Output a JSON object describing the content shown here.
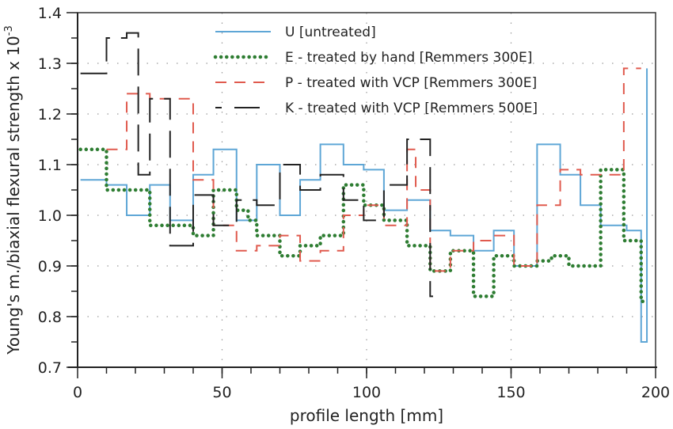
{
  "chart_data": {
    "type": "line",
    "step": true,
    "title": "",
    "xlabel": "profile length [mm]",
    "ylabel": "Young's m./biaxial flexural strength x 10",
    "ylabel_superscript": "-3",
    "xlim": [
      0,
      200
    ],
    "ylim": [
      0.7,
      1.4
    ],
    "x_ticks": [
      0,
      50,
      100,
      150,
      200
    ],
    "x_tick_labels": [
      "0",
      "50",
      "100",
      "150",
      "200"
    ],
    "x_minor_step": 10,
    "y_ticks": [
      0.7,
      0.8,
      0.9,
      1.0,
      1.1,
      1.2,
      1.3,
      1.4
    ],
    "y_tick_labels": [
      "0.7",
      "0.8",
      "0.9",
      "1.0",
      "1.1",
      "1.2",
      "1.3",
      "1.4"
    ],
    "y_minor_step": 0.05,
    "grid": true,
    "legend_position": "top-right",
    "series": [
      {
        "name": "U [untreated]",
        "color": "#5ea6d6",
        "style": "solid",
        "x": [
          1,
          10,
          17,
          25,
          32,
          40,
          47,
          55,
          62,
          70,
          77,
          84,
          92,
          99,
          106,
          114,
          122,
          129,
          137,
          144,
          151,
          159,
          167,
          174,
          181,
          190,
          195,
          197
        ],
        "values": [
          1.07,
          1.06,
          1.0,
          1.06,
          0.99,
          1.08,
          1.13,
          0.99,
          1.1,
          1.0,
          1.07,
          1.14,
          1.1,
          1.09,
          1.01,
          1.03,
          0.97,
          0.96,
          0.93,
          0.97,
          0.9,
          1.14,
          1.08,
          1.02,
          0.98,
          0.97,
          0.75,
          1.29
        ]
      },
      {
        "name": "E - treated by hand [Remmers 300E]",
        "color": "#2e7d32",
        "style": "dotted",
        "x": [
          1,
          10,
          25,
          40,
          47,
          55,
          59,
          62,
          70,
          77,
          84,
          92,
          99,
          106,
          114,
          122,
          129,
          137,
          144,
          151,
          159,
          164,
          170,
          181,
          189,
          195,
          196
        ],
        "values": [
          1.13,
          1.05,
          0.98,
          0.96,
          1.05,
          1.01,
          0.99,
          0.96,
          0.92,
          0.94,
          0.96,
          1.06,
          1.02,
          0.99,
          0.94,
          0.89,
          0.93,
          0.84,
          0.92,
          0.9,
          0.91,
          0.92,
          0.9,
          1.09,
          0.95,
          0.83,
          0.83
        ]
      },
      {
        "name": "P - treated with VCP [Remmers 300E]",
        "color": "#e05a4e",
        "style": "dashed",
        "x": [
          10,
          17,
          25,
          40,
          47,
          55,
          62,
          70,
          77,
          84,
          92,
          99,
          106,
          114,
          117,
          122,
          129,
          137,
          144,
          151,
          159,
          167,
          174,
          189,
          195
        ],
        "values": [
          1.13,
          1.24,
          1.23,
          1.07,
          0.98,
          0.93,
          0.94,
          0.96,
          0.91,
          0.93,
          1.0,
          1.02,
          0.98,
          1.13,
          1.05,
          0.89,
          0.93,
          0.95,
          0.96,
          0.9,
          1.02,
          1.09,
          1.08,
          1.29,
          1.29
        ]
      },
      {
        "name": "K - treated with VCP [Remmers 500E]",
        "color": "#222222",
        "style": "longdash",
        "x": [
          1,
          10,
          17,
          21,
          25,
          32,
          40,
          47,
          55,
          62,
          70,
          77,
          84,
          92,
          99,
          106,
          114,
          122,
          123
        ],
        "values": [
          1.28,
          1.35,
          1.36,
          1.08,
          1.23,
          0.94,
          1.04,
          0.98,
          1.03,
          1.02,
          1.1,
          1.05,
          1.08,
          1.03,
          0.99,
          1.06,
          1.15,
          0.84,
          0.84
        ]
      }
    ]
  }
}
